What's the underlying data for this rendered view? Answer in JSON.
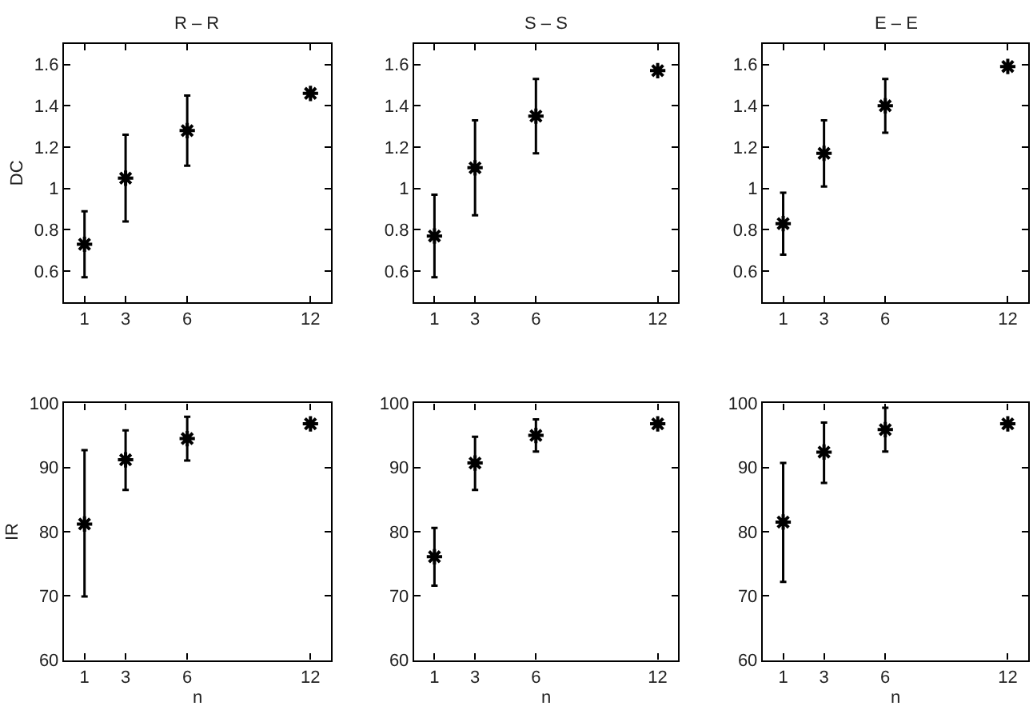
{
  "chart_data": [
    {
      "type": "scatter",
      "title": "R – R",
      "ylabel": "DC",
      "x": [
        1,
        3,
        6,
        12
      ],
      "values": [
        0.73,
        1.05,
        1.28,
        1.46
      ],
      "errors": [
        [
          0.57,
          0.89
        ],
        [
          0.84,
          1.26
        ],
        [
          1.11,
          1.45
        ],
        null
      ],
      "color": "#000000",
      "marker": "cross",
      "xlim": [
        0,
        13
      ],
      "xticks": [
        1,
        3,
        6,
        12
      ],
      "ylim": [
        0.45,
        1.7
      ],
      "yticks": [
        0.6,
        0.8,
        1,
        1.2,
        1.4,
        1.6
      ]
    },
    {
      "type": "scatter",
      "title": "S – S",
      "x": [
        1,
        3,
        6,
        12
      ],
      "values": [
        0.77,
        1.1,
        1.35,
        1.57
      ],
      "errors": [
        [
          0.57,
          0.97
        ],
        [
          0.87,
          1.33
        ],
        [
          1.17,
          1.53
        ],
        null
      ],
      "color": "#000000",
      "marker": "cross",
      "xlim": [
        0,
        13
      ],
      "xticks": [
        1,
        3,
        6,
        12
      ],
      "ylim": [
        0.45,
        1.7
      ],
      "yticks": [
        0.6,
        0.8,
        1,
        1.2,
        1.4,
        1.6
      ]
    },
    {
      "type": "scatter",
      "title": "E – E",
      "x": [
        1,
        3,
        6,
        12
      ],
      "values": [
        0.83,
        1.17,
        1.4,
        1.59
      ],
      "errors": [
        [
          0.68,
          0.98
        ],
        [
          1.01,
          1.33
        ],
        [
          1.27,
          1.53
        ],
        null
      ],
      "color": "#000000",
      "marker": "cross",
      "xlim": [
        0,
        13
      ],
      "xticks": [
        1,
        3,
        6,
        12
      ],
      "ylim": [
        0.45,
        1.7
      ],
      "yticks": [
        0.6,
        0.8,
        1,
        1.2,
        1.4,
        1.6
      ]
    },
    {
      "type": "scatter",
      "xlabel": "n",
      "ylabel": "IR",
      "x": [
        1,
        3,
        6,
        12
      ],
      "values": [
        81.2,
        91.2,
        94.5,
        96.8
      ],
      "errors": [
        [
          69.9,
          92.7
        ],
        [
          86.5,
          95.8
        ],
        [
          91.1,
          97.9
        ],
        null
      ],
      "color": "#000000",
      "marker": "cross",
      "xlim": [
        0,
        13
      ],
      "xticks": [
        1,
        3,
        6,
        12
      ],
      "ylim": [
        60,
        100
      ],
      "yticks": [
        60,
        70,
        80,
        90,
        100
      ]
    },
    {
      "type": "scatter",
      "xlabel": "n",
      "x": [
        1,
        3,
        6,
        12
      ],
      "values": [
        76.1,
        90.7,
        95.0,
        96.8
      ],
      "errors": [
        [
          71.6,
          80.6
        ],
        [
          86.5,
          94.8
        ],
        [
          92.5,
          97.5
        ],
        null
      ],
      "color": "#000000",
      "marker": "cross",
      "xlim": [
        0,
        13
      ],
      "xticks": [
        1,
        3,
        6,
        12
      ],
      "ylim": [
        60,
        100
      ],
      "yticks": [
        60,
        70,
        80,
        90,
        100
      ]
    },
    {
      "type": "scatter",
      "xlabel": "n",
      "x": [
        1,
        3,
        6,
        12
      ],
      "values": [
        81.5,
        92.4,
        95.9,
        96.8
      ],
      "errors": [
        [
          72.2,
          90.7
        ],
        [
          87.6,
          97.0
        ],
        [
          92.5,
          99.3
        ],
        null
      ],
      "color": "#000000",
      "marker": "cross",
      "xlim": [
        0,
        13
      ],
      "xticks": [
        1,
        3,
        6,
        12
      ],
      "ylim": [
        60,
        100
      ],
      "yticks": [
        60,
        70,
        80,
        90,
        100
      ]
    }
  ]
}
